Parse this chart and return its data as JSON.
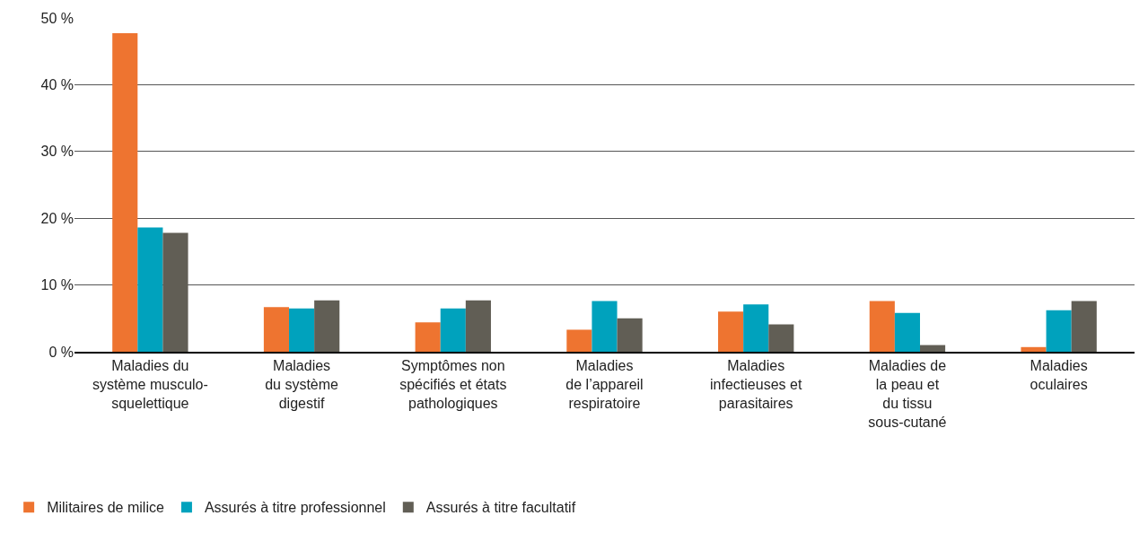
{
  "chart_data": {
    "type": "bar",
    "categories": [
      "Maladies du\nsystème musculo-\nsquelettique",
      "Maladies\ndu système\ndigestif",
      "Symptômes non\nspécifiés et états\npathologiques",
      "Maladies\nde l’appareil\nrespiratoire",
      "Maladies\ninfectieuses et\nparasitaires",
      "Maladies de\nla peau et\ndu tissu\nsous-cutané",
      "Maladies\noculaires"
    ],
    "series": [
      {
        "name": "Militaires de milice",
        "color": "#ee7430",
        "values": [
          47.7,
          6.7,
          4.4,
          3.3,
          6.0,
          7.6,
          0.7
        ]
      },
      {
        "name": "Assurés à titre professionnel",
        "color": "#00a2bd",
        "values": [
          18.6,
          6.5,
          6.5,
          7.6,
          7.1,
          5.8,
          6.2
        ]
      },
      {
        "name": "Assurés à titre facultatif",
        "color": "#615e55",
        "values": [
          17.8,
          7.7,
          7.7,
          5.0,
          4.1,
          1.0,
          7.6
        ]
      }
    ],
    "ylim": [
      0,
      50
    ],
    "yticks": [
      {
        "value": 0,
        "label": "0 %"
      },
      {
        "value": 10,
        "label": "10 %"
      },
      {
        "value": 20,
        "label": "20 %"
      },
      {
        "value": 30,
        "label": "30 %"
      },
      {
        "value": 40,
        "label": "40 %"
      },
      {
        "value": 50,
        "label": "50 %"
      }
    ],
    "grid": "y",
    "legend": "bottom left"
  }
}
